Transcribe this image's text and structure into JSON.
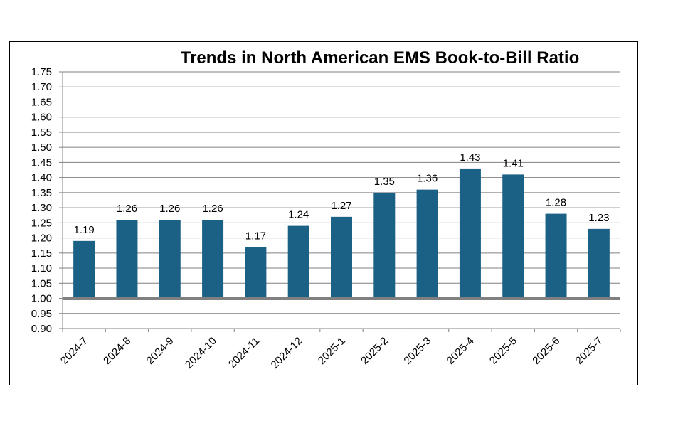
{
  "chart_data": {
    "type": "bar",
    "title": "Trends in North American EMS Book-to-Bill Ratio",
    "xlabel": "",
    "ylabel": "",
    "categories": [
      "2024-7",
      "2024-8",
      "2024-9",
      "2024-10",
      "2024-11",
      "2024-12",
      "2025-1",
      "2025-2",
      "2025-3",
      "2025-4",
      "2025-5",
      "2025-6",
      "2025-7"
    ],
    "values": [
      1.19,
      1.26,
      1.26,
      1.26,
      1.17,
      1.24,
      1.27,
      1.35,
      1.36,
      1.43,
      1.41,
      1.28,
      1.23
    ],
    "value_labels": [
      "1.19",
      "1.26",
      "1.26",
      "1.26",
      "1.17",
      "1.24",
      "1.27",
      "1.35",
      "1.36",
      "1.43",
      "1.41",
      "1.28",
      "1.23"
    ],
    "ylim": [
      0.9,
      1.75
    ],
    "y_ticks": [
      "1.75",
      "1.70",
      "1.65",
      "1.60",
      "1.55",
      "1.50",
      "1.45",
      "1.40",
      "1.35",
      "1.30",
      "1.25",
      "1.20",
      "1.15",
      "1.10",
      "1.05",
      "1.00",
      "0.95",
      "0.90"
    ],
    "baseline": 1.0,
    "grid": true,
    "legend": "none",
    "colors": {
      "bar": "#1b6185",
      "baseline": "#808080",
      "grid": "#808080",
      "axis": "#808080"
    }
  }
}
